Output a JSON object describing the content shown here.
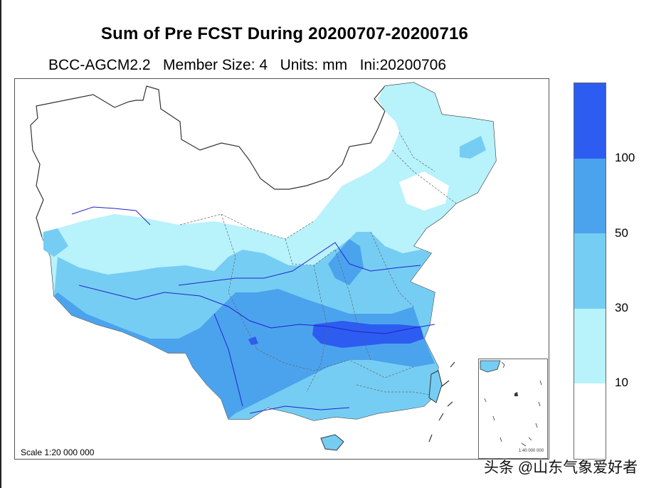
{
  "header": {
    "title": "Sum of Pre FCST During 20200707-20200716",
    "subtitle": "BCC-AGCM2.2   Member Size: 4   Units: mm   Ini:20200706"
  },
  "map": {
    "scale_label": "Scale 1:20 000 000",
    "inset_scale_label": "1:40 000 000"
  },
  "legend": {
    "levels": [
      {
        "label": "100",
        "color": "#2d5cf0"
      },
      {
        "label": "50",
        "color": "#4ba3ee"
      },
      {
        "label": "30",
        "color": "#76cdf3"
      },
      {
        "label": "10",
        "color": "#b8f2fb"
      },
      {
        "label": "",
        "color": "#ffffff"
      }
    ]
  },
  "watermark": "头条 @山东气象爱好者"
}
